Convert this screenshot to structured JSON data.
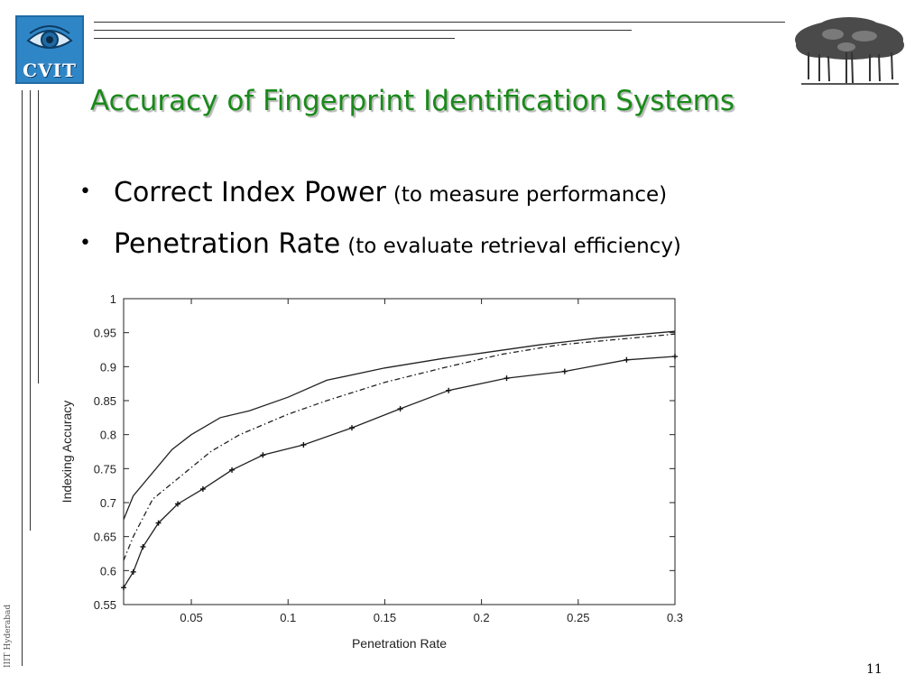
{
  "logo": {
    "text": "CVIT"
  },
  "slide": {
    "title": "Accuracy of Fingerprint Identification Systems",
    "bullets": [
      {
        "main": "Correct Index Power",
        "sub": "(to measure performance)"
      },
      {
        "main": "Penetration Rate",
        "sub": "(to evaluate retrieval efficiency)"
      }
    ],
    "side_label": "IIIT Hyderabad",
    "page_number": "11"
  },
  "chart_data": {
    "type": "line",
    "xlabel": "Penetration Rate",
    "ylabel": "Indexing Accuracy",
    "xlim": [
      0.015,
      0.3
    ],
    "ylim": [
      0.55,
      1.0
    ],
    "xticks": [
      0.05,
      0.1,
      0.15,
      0.2,
      0.25,
      0.3
    ],
    "xtick_labels": [
      "0.05",
      "0.1",
      "0.15",
      "0.2",
      "0.25",
      "0.3"
    ],
    "yticks": [
      0.55,
      0.6,
      0.65,
      0.7,
      0.75,
      0.8,
      0.85,
      0.9,
      0.95,
      1.0
    ],
    "ytick_labels": [
      "0.55",
      "0.6",
      "0.65",
      "0.7",
      "0.75",
      "0.8",
      "0.85",
      "0.9",
      "0.95",
      "1"
    ],
    "grid": false,
    "legend": "none",
    "series": [
      {
        "style": "solid",
        "markers": false,
        "points": [
          [
            0.015,
            0.675
          ],
          [
            0.02,
            0.71
          ],
          [
            0.04,
            0.778
          ],
          [
            0.05,
            0.8
          ],
          [
            0.065,
            0.825
          ],
          [
            0.08,
            0.835
          ],
          [
            0.1,
            0.855
          ],
          [
            0.12,
            0.88
          ],
          [
            0.15,
            0.898
          ],
          [
            0.18,
            0.912
          ],
          [
            0.2,
            0.92
          ],
          [
            0.23,
            0.932
          ],
          [
            0.26,
            0.942
          ],
          [
            0.3,
            0.952
          ]
        ]
      },
      {
        "style": "dashdot",
        "markers": false,
        "points": [
          [
            0.015,
            0.615
          ],
          [
            0.02,
            0.65
          ],
          [
            0.03,
            0.705
          ],
          [
            0.045,
            0.74
          ],
          [
            0.06,
            0.775
          ],
          [
            0.075,
            0.8
          ],
          [
            0.1,
            0.83
          ],
          [
            0.12,
            0.85
          ],
          [
            0.15,
            0.877
          ],
          [
            0.18,
            0.898
          ],
          [
            0.21,
            0.918
          ],
          [
            0.24,
            0.932
          ],
          [
            0.27,
            0.94
          ],
          [
            0.3,
            0.948
          ]
        ]
      },
      {
        "style": "solid",
        "markers": true,
        "points": [
          [
            0.015,
            0.575
          ],
          [
            0.02,
            0.598
          ],
          [
            0.025,
            0.635
          ],
          [
            0.033,
            0.67
          ],
          [
            0.043,
            0.698
          ],
          [
            0.056,
            0.72
          ],
          [
            0.071,
            0.748
          ],
          [
            0.087,
            0.77
          ],
          [
            0.108,
            0.785
          ],
          [
            0.133,
            0.81
          ],
          [
            0.158,
            0.838
          ],
          [
            0.183,
            0.865
          ],
          [
            0.213,
            0.883
          ],
          [
            0.243,
            0.893
          ],
          [
            0.275,
            0.91
          ],
          [
            0.3,
            0.915
          ]
        ]
      }
    ]
  }
}
